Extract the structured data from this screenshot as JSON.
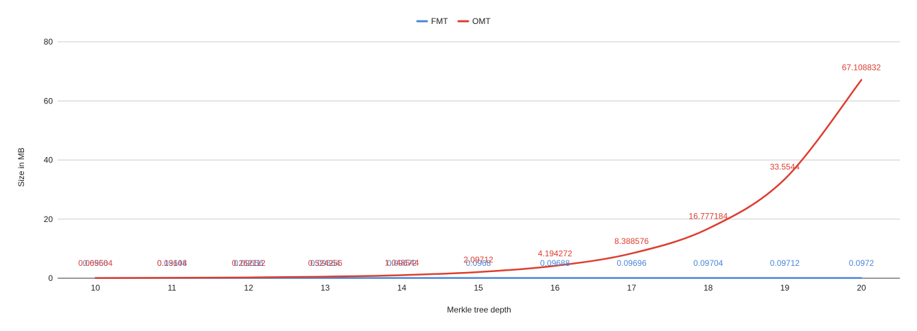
{
  "chart_data": {
    "type": "line",
    "title": "",
    "xlabel": "Merkle tree depth",
    "ylabel": "Size in MB",
    "ylim": [
      0,
      80
    ],
    "yticks": [
      0,
      20,
      40,
      60,
      80
    ],
    "grid": true,
    "legend_position": "top",
    "categories": [
      "10",
      "11",
      "12",
      "13",
      "14",
      "15",
      "16",
      "17",
      "18",
      "19",
      "20"
    ],
    "series": [
      {
        "name": "FMT",
        "color": "#4a86d8",
        "values": [
          0.0966,
          0.09648,
          0.09656,
          0.09664,
          0.09672,
          0.0968,
          0.09688,
          0.09696,
          0.09704,
          0.09712,
          0.0972
        ],
        "labels": [
          "0.0966",
          "0.09648",
          "0.09656",
          "0.09664",
          "0.09672",
          "0.0968",
          "0.09688",
          "0.09696",
          "0.09704",
          "0.09712",
          "0.0972"
        ]
      },
      {
        "name": "OMT",
        "color": "#dc3e30",
        "values": [
          0.065504,
          0.13104,
          0.262112,
          0.524256,
          1.048544,
          2.09712,
          4.194272,
          8.388576,
          16.777184,
          33.5544,
          67.108832
        ],
        "labels": [
          "0.065504",
          "0.13104",
          "0.262112",
          "0.524256",
          "1.048544",
          "2.09712",
          "4.194272",
          "8.388576",
          "16.777184",
          "33.5544",
          "67.108832"
        ]
      }
    ]
  }
}
